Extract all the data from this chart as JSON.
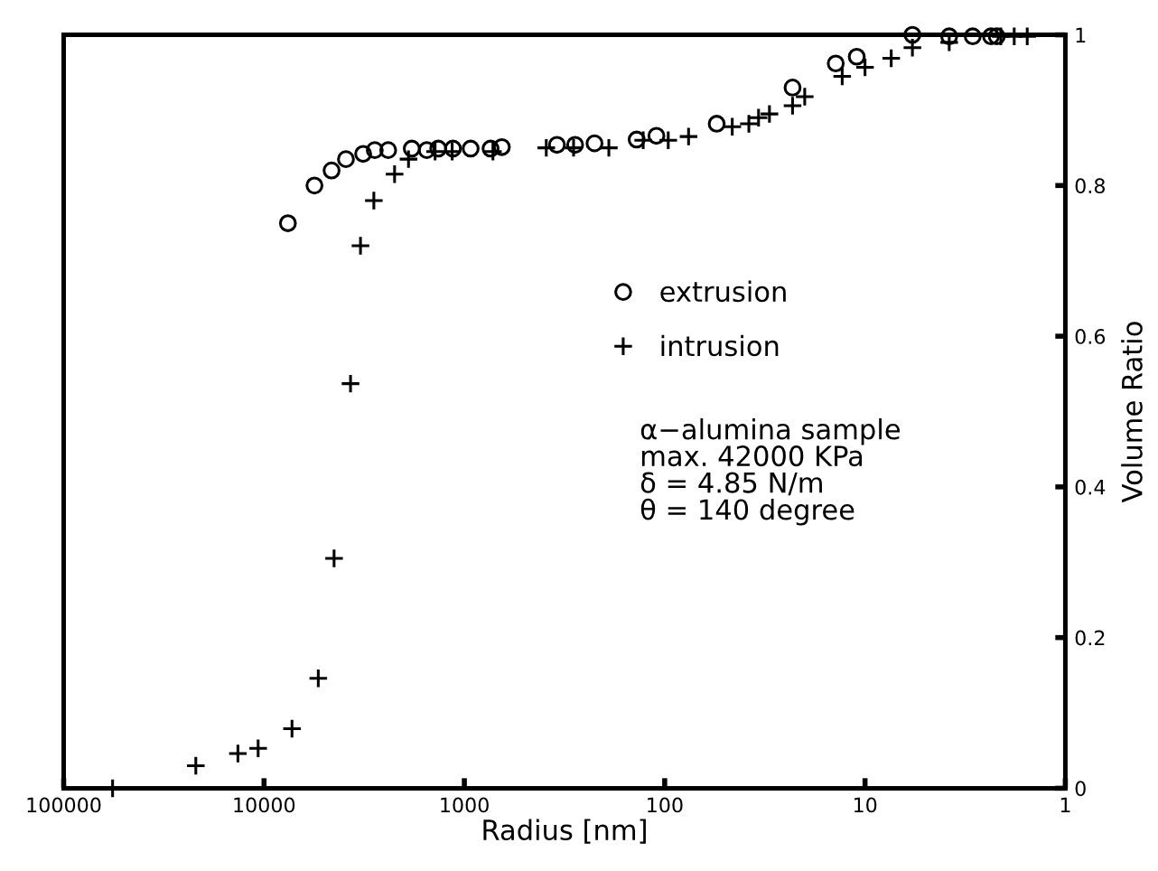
{
  "chart_data": {
    "type": "scatter",
    "xlabel": "Radius [nm]",
    "ylabel": "Volume Ratio",
    "log": "x",
    "xlim": [
      100000,
      1
    ],
    "xticks": [
      100000,
      10000,
      1000,
      100,
      10,
      1
    ],
    "ylim": [
      0,
      1
    ],
    "yticks": [
      0,
      0.2,
      0.4,
      0.6,
      0.8,
      1
    ],
    "grid": false,
    "legend": "right",
    "annotations": [
      "α−alumina sample\nmax. 42000 KPa\nδ = 4.85 N/m\nθ = 140 degree"
    ],
    "series": [
      {
        "name": "extrusion",
        "color": "#000000",
        "marker": "circle",
        "x": [
          7600,
          5600,
          4600,
          3900,
          3200,
          2800,
          2400,
          1830,
          1540,
          1350,
          1140,
          930,
          740,
          650,
          345,
          280,
          224,
          138,
          110,
          55,
          23,
          14,
          11,
          5.8,
          3.8,
          2.9,
          2.35,
          2.2
        ],
        "values": [
          0.75,
          0.8,
          0.82,
          0.835,
          0.842,
          0.847,
          0.847,
          0.849,
          0.847,
          0.849,
          0.849,
          0.849,
          0.849,
          0.851,
          0.854,
          0.854,
          0.856,
          0.861,
          0.866,
          0.882,
          0.93,
          0.962,
          0.971,
          1.0,
          0.998,
          0.998,
          0.998,
          0.998
        ]
      },
      {
        "name": "intrusion",
        "color": "#000000",
        "marker": "cross",
        "x": [
          57000,
          21900,
          13500,
          10700,
          7250,
          5360,
          4470,
          3700,
          3300,
          2830,
          2230,
          1900,
          1400,
          1150,
          720,
          390,
          285,
          190,
          128,
          96,
          76,
          46,
          38,
          34,
          30,
          23,
          20,
          13,
          10,
          7.4,
          5.8,
          3.8,
          2.1,
          1.8,
          1.55
        ],
        "values": [
          0.0,
          0.03,
          0.046,
          0.053,
          0.079,
          0.146,
          0.305,
          0.537,
          0.72,
          0.78,
          0.815,
          0.835,
          0.845,
          0.845,
          0.845,
          0.85,
          0.85,
          0.85,
          0.86,
          0.86,
          0.865,
          0.878,
          0.882,
          0.89,
          0.895,
          0.906,
          0.918,
          0.945,
          0.957,
          0.969,
          0.983,
          0.99,
          0.998,
          0.998,
          0.998
        ]
      }
    ]
  }
}
